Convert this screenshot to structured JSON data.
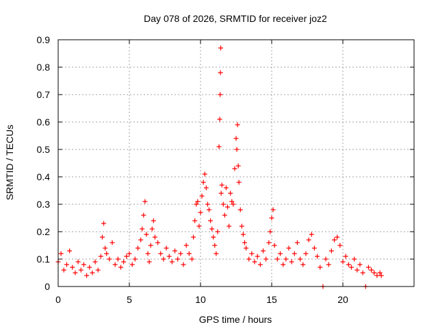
{
  "chart_data": {
    "type": "scatter",
    "title": "Day 078 of 2026, SRMTID for receiver joz2",
    "xlabel": "GPS time / hours",
    "ylabel": "SRMTID / TECUs",
    "xlim": [
      0,
      25
    ],
    "ylim": [
      0,
      0.9
    ],
    "x_ticks": [
      0,
      5,
      10,
      15,
      20
    ],
    "y_ticks": [
      0,
      0.1,
      0.2,
      0.3,
      0.4,
      0.5,
      0.6,
      0.7,
      0.8,
      0.9
    ],
    "x_tick_labels": [
      "0",
      "5",
      "10",
      "15",
      "20"
    ],
    "y_tick_labels": [
      "0",
      "0.1",
      "0.2",
      "0.3",
      "0.4",
      "0.5",
      "0.6",
      "0.7",
      "0.8",
      "0.9"
    ],
    "grid": true,
    "marker": "+",
    "series_color": "#ff0000",
    "series": [
      {
        "name": "SRMTID",
        "x": [
          0.0,
          0.2,
          0.4,
          0.6,
          0.8,
          1.0,
          1.2,
          1.4,
          1.6,
          1.8,
          2.0,
          2.2,
          2.4,
          2.6,
          2.8,
          3.0,
          3.1,
          3.2,
          3.3,
          3.4,
          3.6,
          3.8,
          4.0,
          4.2,
          4.4,
          4.6,
          4.8,
          5.0,
          5.2,
          5.4,
          5.6,
          5.8,
          5.9,
          6.0,
          6.1,
          6.2,
          6.3,
          6.4,
          6.5,
          6.6,
          6.7,
          6.8,
          7.0,
          7.2,
          7.4,
          7.6,
          7.8,
          8.0,
          8.2,
          8.4,
          8.6,
          8.8,
          9.0,
          9.2,
          9.4,
          9.5,
          9.6,
          9.7,
          9.8,
          9.9,
          10.0,
          10.1,
          10.2,
          10.3,
          10.4,
          10.5,
          10.6,
          10.7,
          10.8,
          10.9,
          11.0,
          11.1,
          11.2,
          11.3,
          11.35,
          11.38,
          11.4,
          11.42,
          11.45,
          11.5,
          11.6,
          11.7,
          11.8,
          11.9,
          12.0,
          12.1,
          12.2,
          12.3,
          12.4,
          12.5,
          12.55,
          12.6,
          12.65,
          12.7,
          12.8,
          12.9,
          13.0,
          13.1,
          13.2,
          13.4,
          13.6,
          13.8,
          14.0,
          14.2,
          14.4,
          14.6,
          14.8,
          14.9,
          15.0,
          15.1,
          15.2,
          15.4,
          15.6,
          15.8,
          16.0,
          16.2,
          16.4,
          16.6,
          16.8,
          17.0,
          17.2,
          17.4,
          17.6,
          17.8,
          18.0,
          18.2,
          18.4,
          18.6,
          18.8,
          19.0,
          19.2,
          19.4,
          19.6,
          19.8,
          20.0,
          20.2,
          20.4,
          20.6,
          20.8,
          21.0,
          21.2,
          21.4,
          21.6,
          21.8,
          22.0,
          22.2,
          22.4,
          22.6,
          22.7
        ],
        "y": [
          0.09,
          0.12,
          0.06,
          0.08,
          0.13,
          0.07,
          0.05,
          0.09,
          0.06,
          0.08,
          0.04,
          0.07,
          0.05,
          0.09,
          0.06,
          0.11,
          0.18,
          0.23,
          0.14,
          0.12,
          0.1,
          0.16,
          0.08,
          0.1,
          0.07,
          0.09,
          0.11,
          0.12,
          0.08,
          0.1,
          0.14,
          0.17,
          0.21,
          0.26,
          0.31,
          0.19,
          0.12,
          0.09,
          0.15,
          0.21,
          0.24,
          0.18,
          0.16,
          0.12,
          0.1,
          0.14,
          0.11,
          0.09,
          0.13,
          0.1,
          0.12,
          0.08,
          0.15,
          0.12,
          0.1,
          0.18,
          0.24,
          0.3,
          0.31,
          0.22,
          0.27,
          0.33,
          0.38,
          0.41,
          0.36,
          0.3,
          0.28,
          0.24,
          0.21,
          0.18,
          0.15,
          0.12,
          0.2,
          0.51,
          0.61,
          0.7,
          0.78,
          0.87,
          0.34,
          0.37,
          0.3,
          0.26,
          0.36,
          0.29,
          0.22,
          0.34,
          0.31,
          0.3,
          0.43,
          0.54,
          0.5,
          0.59,
          0.44,
          0.38,
          0.28,
          0.22,
          0.19,
          0.16,
          0.14,
          0.1,
          0.12,
          0.09,
          0.11,
          0.08,
          0.13,
          0.1,
          0.16,
          0.2,
          0.25,
          0.28,
          0.15,
          0.1,
          0.12,
          0.08,
          0.1,
          0.14,
          0.09,
          0.12,
          0.16,
          0.1,
          0.08,
          0.12,
          0.17,
          0.19,
          0.14,
          0.11,
          0.07,
          0.0,
          0.1,
          0.08,
          0.13,
          0.17,
          0.18,
          0.15,
          0.09,
          0.11,
          0.08,
          0.07,
          0.1,
          0.06,
          0.08,
          0.05,
          0.0,
          0.07,
          0.06,
          0.05,
          0.04,
          0.05,
          0.04
        ]
      }
    ]
  }
}
